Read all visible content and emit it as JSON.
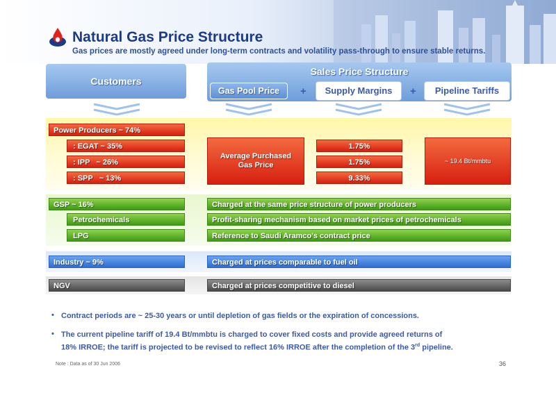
{
  "header": {
    "title": "Natural Gas Price Structure",
    "subtitle": "Gas prices are mostly agreed under long-term contracts and volatility pass-through to ensure stable returns."
  },
  "columns": {
    "customers": "Customers",
    "sales_price_structure": "Sales Price Structure",
    "gas_pool_price": "Gas Pool Price",
    "supply_margins": "Supply Margins",
    "pipeline_tariffs": "Pipeline Tariffs",
    "plus": "+"
  },
  "power": {
    "header": "Power Producers ~ 74%",
    "egat": ": EGAT ~ 35%",
    "ipp": ": IPP   ~ 26%",
    "spp": ": SPP   ~ 13%",
    "avg_purchased": "Average Purchased\nGas Price",
    "margin_egat": "1.75%",
    "margin_ipp": "1.75%",
    "margin_spp": "9.33%",
    "tariff": "~ 19.4 Bt/mmbtu"
  },
  "gsp": {
    "label": "GSP ~ 16%",
    "desc": "Charged at the same price structure of power producers",
    "petro_label": "Petrochemicals",
    "petro_desc": "Profit-sharing mechanism based on market prices of petrochemicals",
    "lpg_label": "LPG",
    "lpg_desc": "Reference to Saudi Aramco's contract price"
  },
  "industry": {
    "label": "Industry ~ 9%",
    "desc": "Charged at prices comparable to fuel oil"
  },
  "ngv": {
    "label": "NGV",
    "desc": "Charged at prices competitive to diesel"
  },
  "notes": {
    "bullet": "•",
    "note1": "Contract periods are ~ 25-30 years or until depletion of gas fields or the expiration of concessions.",
    "note2_a": "The current pipeline tariff of 19.4 Bt/mmbtu is charged to cover fixed costs and provide agreed returns of",
    "note2_b": "18% IRROE; the tariff is projected to be revised to reflect 16% IRROE after the completion of the 3",
    "note2_sup": "rd",
    "note2_c": " pipeline."
  },
  "footer": {
    "note": "Note : Data as of 30 Jun 2006",
    "page": "36"
  },
  "colors": {
    "red": "#d61f10",
    "green": "#3f9a14",
    "blue": "#2f6ed2",
    "gray": "#4a4a4a",
    "title": "#1b3a87"
  }
}
